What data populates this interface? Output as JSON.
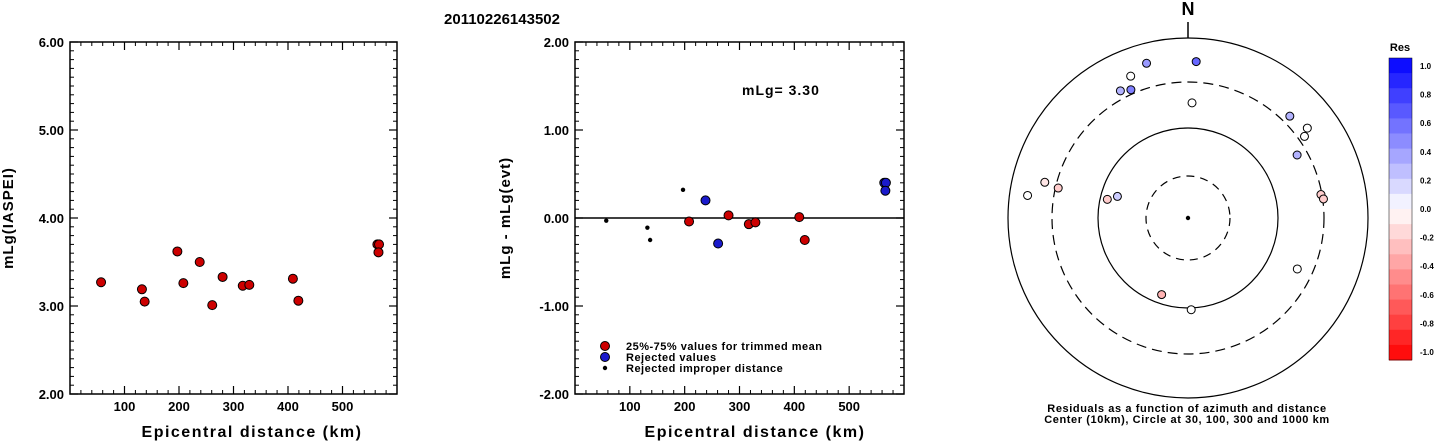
{
  "title": "20110226143502",
  "chart_data": [
    {
      "type": "scatter",
      "id": "left",
      "xlabel": "Epicentral distance (km)",
      "ylabel": "mLg(IASPEI)",
      "xlim": [
        0,
        600
      ],
      "ylim": [
        2.0,
        6.0
      ],
      "xticks": [
        "100",
        "200",
        "300",
        "400",
        "500"
      ],
      "yticks": [
        "2.00",
        "3.00",
        "4.00",
        "5.00",
        "6.00"
      ],
      "series": [
        {
          "color": "#cc0000",
          "points": [
            [
              57,
              3.27
            ],
            [
              132,
              3.19
            ],
            [
              137,
              3.05
            ],
            [
              197,
              3.62
            ],
            [
              208,
              3.26
            ],
            [
              238,
              3.5
            ],
            [
              261,
              3.01
            ],
            [
              280,
              3.33
            ],
            [
              317,
              3.23
            ],
            [
              329,
              3.24
            ],
            [
              409,
              3.31
            ],
            [
              419,
              3.06
            ],
            [
              564,
              3.7
            ],
            [
              567,
              3.7
            ],
            [
              566,
              3.61
            ]
          ]
        }
      ]
    },
    {
      "type": "scatter",
      "id": "middle",
      "xlabel": "Epicentral distance (km)",
      "ylabel": "mLg - mLg(evt)",
      "annotation": "mLg= 3.30",
      "xlim": [
        0,
        600
      ],
      "ylim": [
        -2.0,
        2.0
      ],
      "xticks": [
        "100",
        "200",
        "300",
        "400",
        "500"
      ],
      "yticks": [
        "-2.00",
        "-1.00",
        "0.00",
        "1.00",
        "2.00"
      ],
      "legend": [
        "25%-75% values for trimmed mean",
        "Rejected values",
        "Rejected improper distance"
      ],
      "legend_colors": [
        "#cc0000",
        "#1a1acc",
        "#000000"
      ],
      "series": [
        {
          "name": "25%-75% values for trimmed mean",
          "color": "#cc0000",
          "points": [
            [
              208,
              -0.04
            ],
            [
              280,
              0.03
            ],
            [
              317,
              -0.07
            ],
            [
              329,
              -0.05
            ],
            [
              409,
              0.01
            ],
            [
              419,
              -0.25
            ]
          ]
        },
        {
          "name": "Rejected values",
          "color": "#1a1acc",
          "points": [
            [
              238,
              0.2
            ],
            [
              261,
              -0.29
            ],
            [
              564,
              0.4
            ],
            [
              567,
              0.4
            ],
            [
              566,
              0.31
            ]
          ]
        },
        {
          "name": "Rejected improper distance",
          "color": "#000000",
          "points": [
            [
              57,
              -0.03
            ],
            [
              132,
              -0.11
            ],
            [
              137,
              -0.25
            ],
            [
              197,
              0.32
            ]
          ]
        }
      ]
    }
  ],
  "polar": {
    "north_label": "N",
    "caption_line1": "Residuals as a function of azimuth and distance",
    "caption_line2": "Center (10km), Circle at 30, 100, 300 and 1000 km",
    "stations": [
      {
        "az": 332,
        "r": 0.8,
        "res": 0.3
      },
      {
        "az": 336,
        "r": 0.78,
        "res": 0.5
      },
      {
        "az": 338,
        "r": 0.85,
        "res": 0.0
      },
      {
        "az": 345,
        "r": 0.89,
        "res": 0.4
      },
      {
        "az": 363,
        "r": 0.87,
        "res": 0.6
      },
      {
        "az": 362,
        "r": 0.64,
        "res": 0.0
      },
      {
        "az": 45,
        "r": 0.8,
        "res": 0.3
      },
      {
        "az": 53,
        "r": 0.83,
        "res": 0.0
      },
      {
        "az": 55,
        "r": 0.79,
        "res": 0.0
      },
      {
        "az": 60,
        "r": 0.7,
        "res": 0.3
      },
      {
        "az": 80,
        "r": 0.75,
        "res": -0.2
      },
      {
        "az": 82,
        "r": 0.76,
        "res": -0.2
      },
      {
        "az": 115,
        "r": 0.67,
        "res": 0.0
      },
      {
        "az": 178,
        "r": 0.51,
        "res": 0.0
      },
      {
        "az": 199,
        "r": 0.45,
        "res": -0.3
      },
      {
        "az": 283,
        "r": 0.46,
        "res": -0.2
      },
      {
        "az": 287,
        "r": 0.41,
        "res": 0.2
      },
      {
        "az": 283,
        "r": 0.74,
        "res": -0.2
      },
      {
        "az": 284,
        "r": 0.82,
        "res": -0.1
      },
      {
        "az": 278,
        "r": 0.9,
        "res": 0.0
      }
    ]
  },
  "colorbar": {
    "title": "Res",
    "labels": [
      "1.0",
      "0.8",
      "0.6",
      "0.4",
      "0.2",
      "0.0",
      "-0.2",
      "-0.4",
      "-0.6",
      "-0.8",
      "-1.0"
    ],
    "max_color": "#0000ff",
    "min_color": "#ff0000"
  }
}
